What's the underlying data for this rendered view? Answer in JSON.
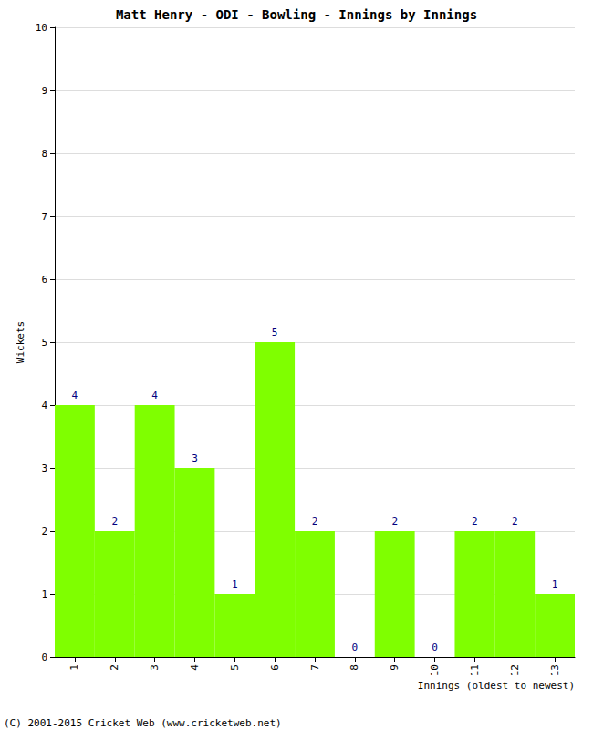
{
  "chart_data": {
    "type": "bar",
    "title": "Matt Henry - ODI - Bowling - Innings by Innings",
    "x_label": "Innings (oldest to newest)",
    "y_label": "Wickets",
    "categories": [
      "1",
      "2",
      "3",
      "4",
      "5",
      "6",
      "7",
      "8",
      "9",
      "10",
      "11",
      "12",
      "13"
    ],
    "values": [
      4,
      2,
      4,
      3,
      1,
      5,
      2,
      0,
      2,
      0,
      2,
      2,
      1
    ],
    "color": "#7fff00",
    "ylim": [
      0,
      10
    ],
    "yticks": [
      0,
      1,
      2,
      3,
      4,
      5,
      6,
      7,
      8,
      9,
      10
    ],
    "grid": true,
    "data_labels": true,
    "annotations": [
      "(C) 2001-2015 Cricket Web (www.cricketweb.net)"
    ]
  }
}
